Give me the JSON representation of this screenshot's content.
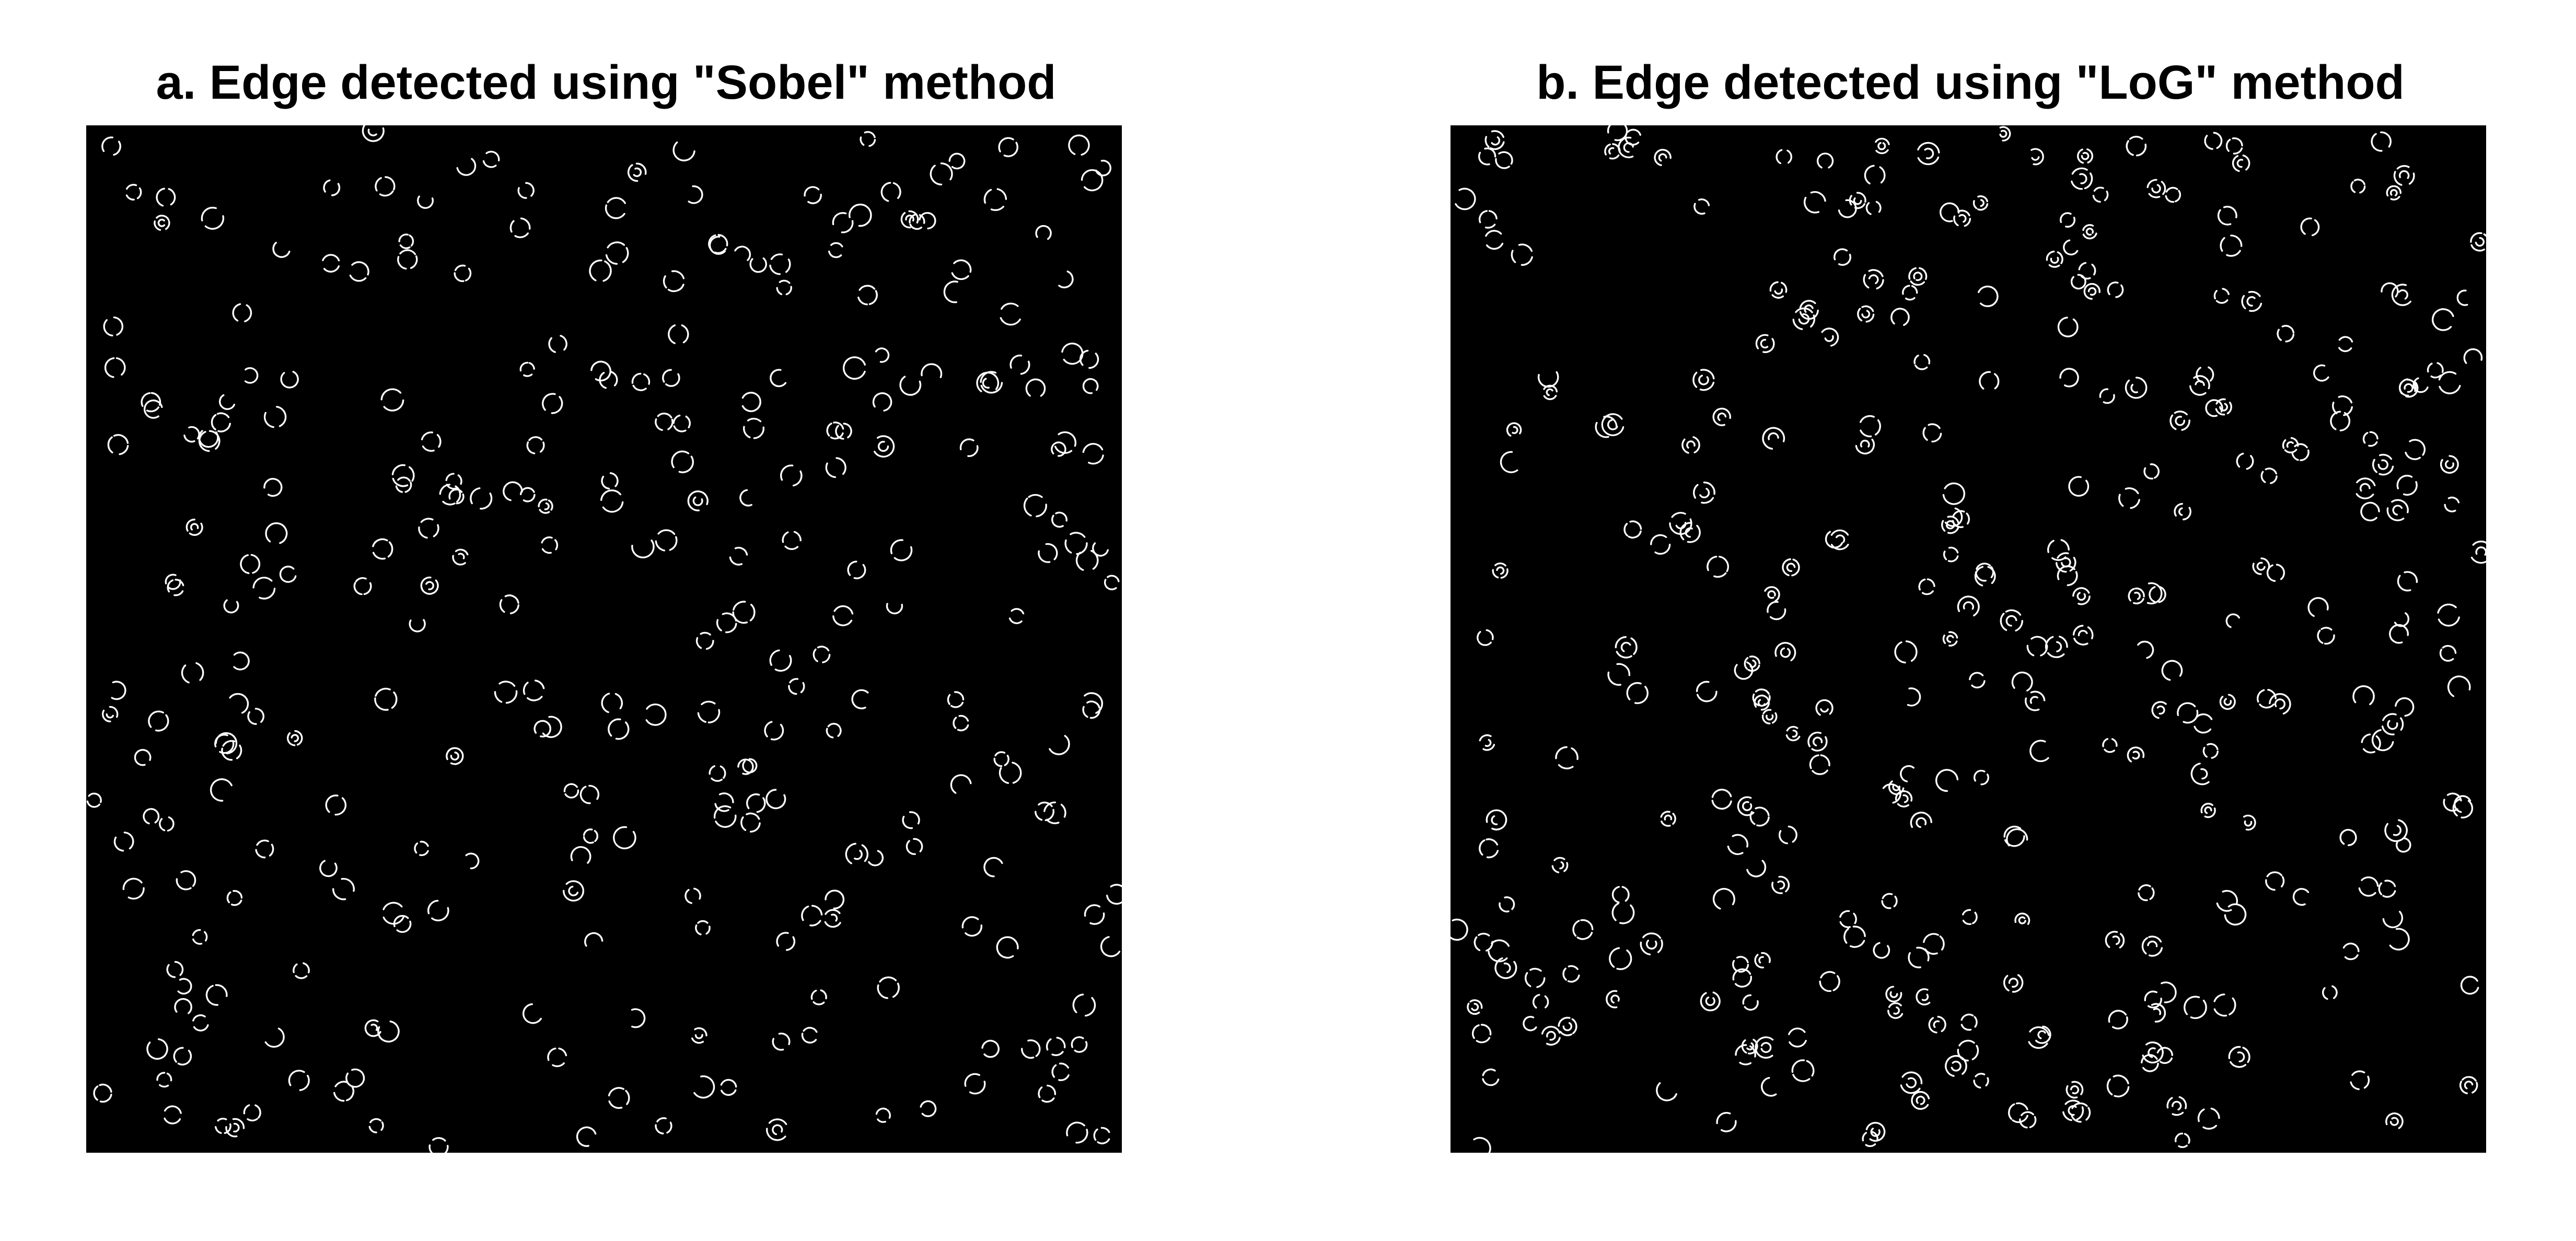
{
  "figure": {
    "panels": [
      {
        "id": "a",
        "title": "a. Edge detected using \"Sobel\" method"
      },
      {
        "id": "b",
        "title": "b. Edge detected using \"LoG\" method"
      }
    ]
  },
  "colors": {
    "background": "#ffffff",
    "image_background": "#000000",
    "edge": "#ffffff"
  }
}
